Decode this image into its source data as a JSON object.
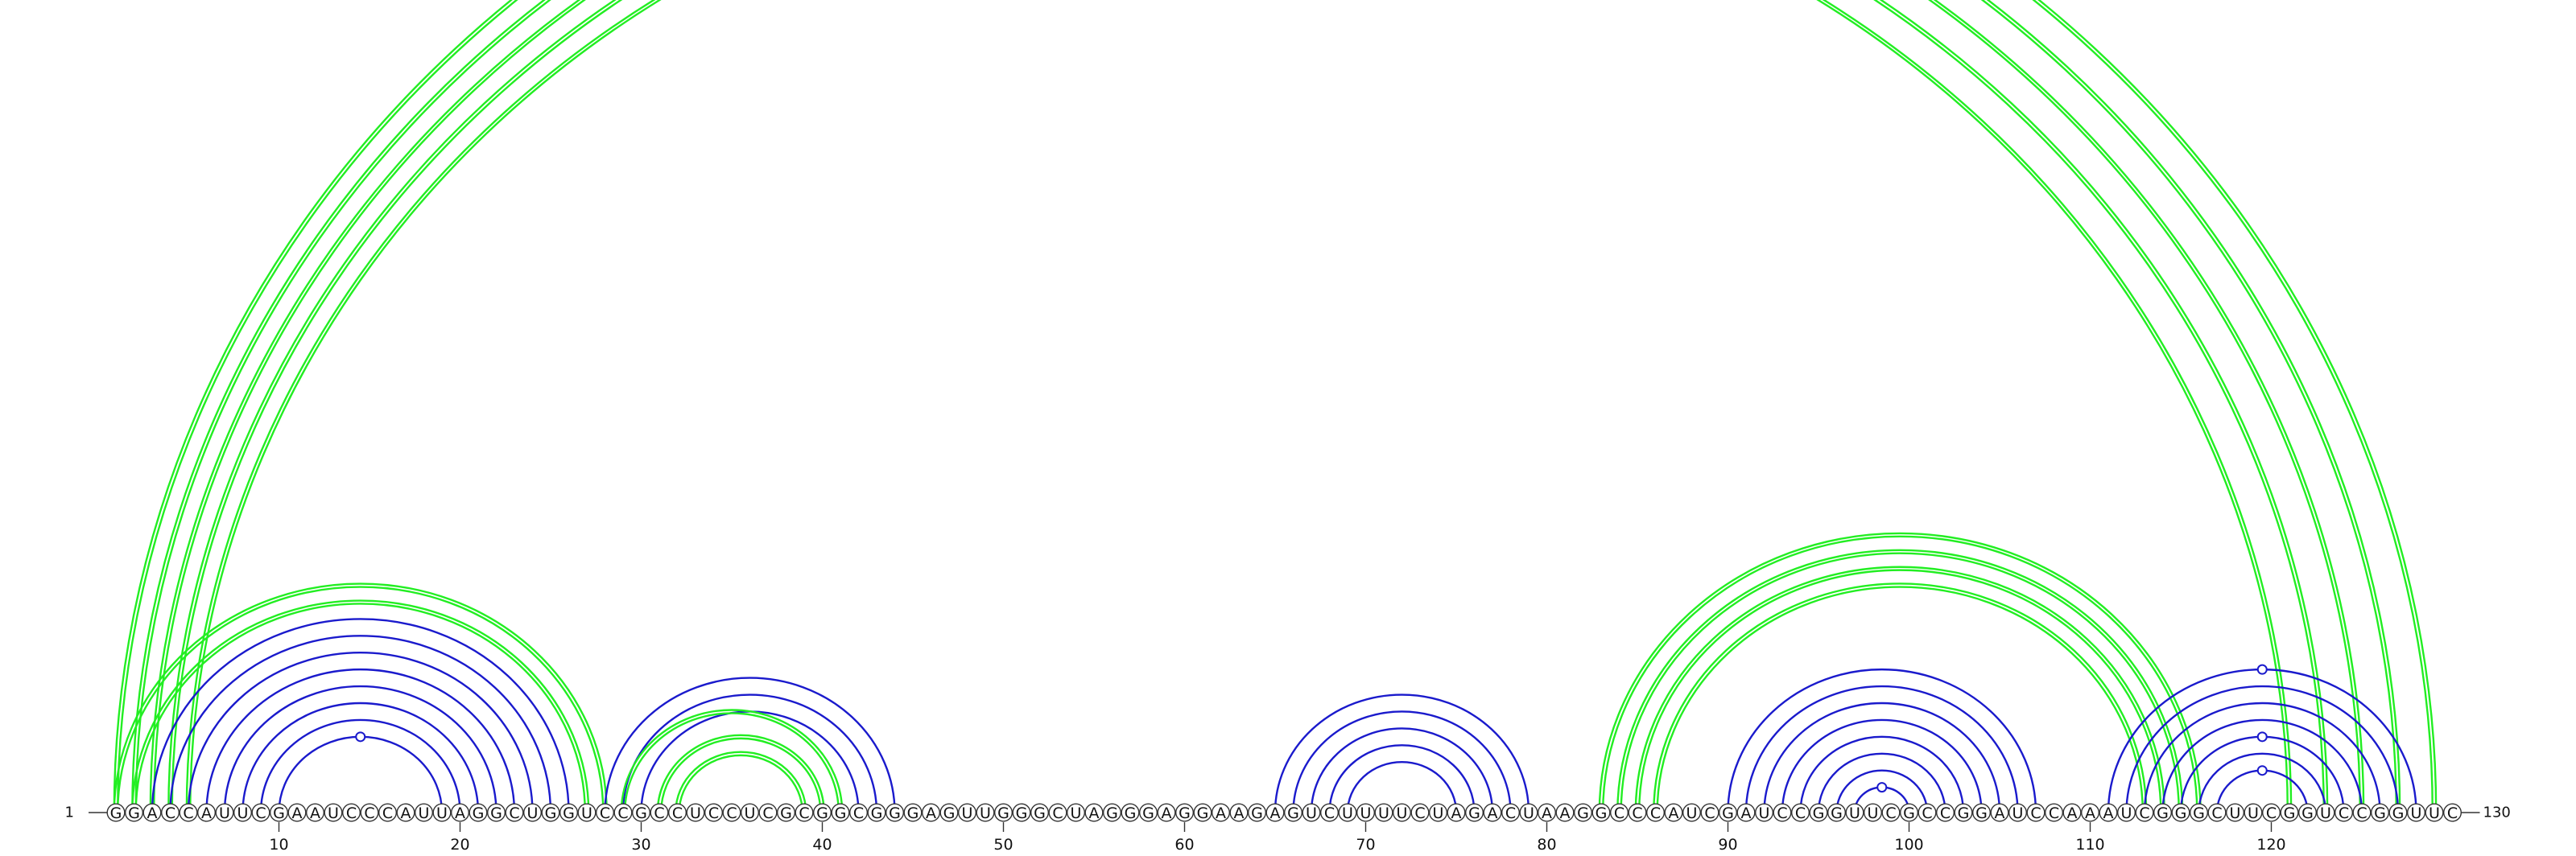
{
  "chart_data": {
    "type": "arc-diagram",
    "sequence": "GGACCAUUCGAAUCCCAUUAGGCUGGUCCGCCUCCUCGCGGCGGGAGUUGGGCUAGGGAGGAAGAGUCUUUUCUAGACUAAGGCCCAUCGAUCCGGUUCGCCGGAUCCAAAUCGGGCUUCGGUCCGGUUC",
    "start_label": "1",
    "end_label": "130",
    "ticks": [
      10,
      20,
      30,
      40,
      50,
      60,
      70,
      80,
      90,
      100,
      110,
      120
    ],
    "colors": {
      "blue": "#1a1acc",
      "green": "#22ee22"
    },
    "arcs": [
      {
        "i": 1,
        "j": 129,
        "color": "green",
        "double": true
      },
      {
        "i": 2,
        "j": 127,
        "color": "green",
        "double": true
      },
      {
        "i": 3,
        "j": 125,
        "color": "green",
        "double": true
      },
      {
        "i": 4,
        "j": 123,
        "color": "green",
        "double": true
      },
      {
        "i": 5,
        "j": 121,
        "color": "green",
        "double": true
      },
      {
        "i": 1,
        "j": 28,
        "color": "green",
        "double": true
      },
      {
        "i": 2,
        "j": 27,
        "color": "green",
        "double": true
      },
      {
        "i": 3,
        "j": 26,
        "color": "blue"
      },
      {
        "i": 4,
        "j": 25,
        "color": "blue"
      },
      {
        "i": 5,
        "j": 24,
        "color": "blue"
      },
      {
        "i": 6,
        "j": 23,
        "color": "blue"
      },
      {
        "i": 7,
        "j": 22,
        "color": "blue"
      },
      {
        "i": 8,
        "j": 21,
        "color": "blue"
      },
      {
        "i": 9,
        "j": 20,
        "color": "blue"
      },
      {
        "i": 10,
        "j": 19,
        "color": "blue"
      },
      {
        "i": 28,
        "j": 44,
        "color": "blue"
      },
      {
        "i": 29,
        "j": 43,
        "color": "blue"
      },
      {
        "i": 30,
        "j": 42,
        "color": "blue"
      },
      {
        "i": 29,
        "j": 41,
        "color": "green",
        "double": true
      },
      {
        "i": 31,
        "j": 40,
        "color": "green",
        "double": true
      },
      {
        "i": 32,
        "j": 39,
        "color": "green",
        "double": true
      },
      {
        "i": 65,
        "j": 79,
        "color": "blue"
      },
      {
        "i": 66,
        "j": 78,
        "color": "blue"
      },
      {
        "i": 67,
        "j": 77,
        "color": "blue"
      },
      {
        "i": 68,
        "j": 76,
        "color": "blue"
      },
      {
        "i": 69,
        "j": 75,
        "color": "blue"
      },
      {
        "i": 83,
        "j": 116,
        "color": "green",
        "double": true
      },
      {
        "i": 84,
        "j": 115,
        "color": "green",
        "double": true
      },
      {
        "i": 85,
        "j": 114,
        "color": "green",
        "double": true
      },
      {
        "i": 86,
        "j": 113,
        "color": "green",
        "double": true
      },
      {
        "i": 90,
        "j": 107,
        "color": "blue"
      },
      {
        "i": 91,
        "j": 106,
        "color": "blue"
      },
      {
        "i": 92,
        "j": 105,
        "color": "blue"
      },
      {
        "i": 93,
        "j": 104,
        "color": "blue"
      },
      {
        "i": 94,
        "j": 103,
        "color": "blue"
      },
      {
        "i": 95,
        "j": 102,
        "color": "blue"
      },
      {
        "i": 96,
        "j": 101,
        "color": "blue"
      },
      {
        "i": 97,
        "j": 100,
        "color": "blue"
      },
      {
        "i": 111,
        "j": 128,
        "color": "blue"
      },
      {
        "i": 112,
        "j": 127,
        "color": "blue"
      },
      {
        "i": 113,
        "j": 126,
        "color": "blue"
      },
      {
        "i": 114,
        "j": 125,
        "color": "blue"
      },
      {
        "i": 115,
        "j": 124,
        "color": "blue"
      },
      {
        "i": 116,
        "j": 123,
        "color": "blue"
      },
      {
        "i": 117,
        "j": 122,
        "color": "blue"
      }
    ],
    "markers": [
      {
        "pos": 65.5,
        "arc_i": 1,
        "arc_j": 129,
        "color": "green"
      },
      {
        "pos": 14.5,
        "arc_i": 10,
        "arc_j": 19,
        "color": "blue"
      },
      {
        "pos": 98.5,
        "arc_i": 97,
        "arc_j": 100,
        "color": "blue"
      },
      {
        "pos": 119.5,
        "arc_i": 111,
        "arc_j": 128,
        "color": "blue"
      },
      {
        "pos": 119.5,
        "arc_i": 115,
        "arc_j": 124,
        "color": "blue"
      },
      {
        "pos": 119.5,
        "arc_i": 117,
        "arc_j": 122,
        "color": "blue"
      }
    ]
  }
}
